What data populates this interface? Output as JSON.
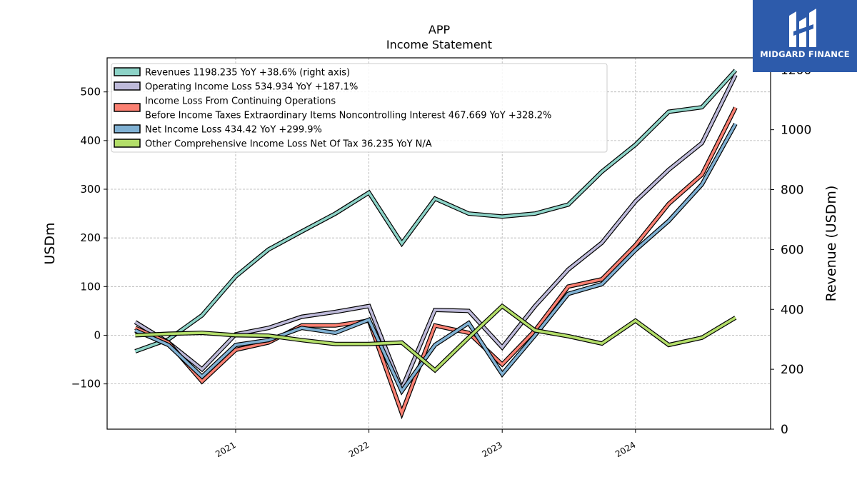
{
  "header": {
    "ticker": "APP",
    "subtitle": "Income Statement"
  },
  "logo": {
    "text": "MIDGARD FINANCE"
  },
  "chart_data": {
    "type": "line",
    "x": [
      "2020-04-01",
      "2020-07-01",
      "2020-10-01",
      "2021-01-01",
      "2021-04-01",
      "2021-07-01",
      "2021-10-01",
      "2022-01-01",
      "2022-04-01",
      "2022-07-01",
      "2022-10-01",
      "2023-01-01",
      "2023-04-01",
      "2023-07-01",
      "2023-10-01",
      "2024-01-01",
      "2024-04-01",
      "2024-07-01",
      "2024-10-01"
    ],
    "x_ticks": [
      "2021",
      "2022",
      "2023",
      "2024"
    ],
    "y_left": {
      "label": "USDm",
      "ticks": [
        -100,
        0,
        100,
        200,
        300,
        400,
        500
      ],
      "lim": [
        -193,
        570
      ]
    },
    "y_right": {
      "label": "Revenue (USDm)",
      "ticks": [
        0,
        200,
        400,
        600,
        800,
        1000,
        1200
      ],
      "lim": [
        0,
        1240
      ]
    },
    "grid": true,
    "legend_position": "top-left",
    "series": [
      {
        "name": "Revenues  1198.235 YoY +38.6% (right axis)",
        "axis": "right",
        "color": "#8dd3c7",
        "values": [
          260,
          300,
          380,
          510,
          600,
          660,
          720,
          790,
          620,
          770,
          720,
          710,
          720,
          750,
          860,
          950,
          1060,
          1075,
          1198.235
        ]
      },
      {
        "name": "Operating Income Loss  534.934 YoY +187.1%",
        "axis": "left",
        "color": "#bebada",
        "values": [
          27,
          -15,
          -70,
          2,
          15,
          38,
          48,
          60,
          -110,
          52,
          50,
          -25,
          60,
          135,
          190,
          275,
          340,
          395,
          534.934
        ]
      },
      {
        "name": "Income Loss From Continuing Operations\nBefore Income Taxes Extraordinary Items Noncontrolling Interest  467.669 YoY +328.2%",
        "axis": "left",
        "color": "#fb8072",
        "values": [
          15,
          -15,
          -95,
          -30,
          -15,
          20,
          20,
          30,
          -160,
          20,
          5,
          -60,
          10,
          100,
          115,
          185,
          270,
          330,
          467.669
        ]
      },
      {
        "name": "Net Income Loss  434.42 YoY +299.9%",
        "axis": "left",
        "color": "#80b1d3",
        "values": [
          10,
          -20,
          -85,
          -20,
          -10,
          15,
          5,
          32,
          -115,
          -20,
          25,
          -80,
          0,
          85,
          105,
          175,
          235,
          310,
          434.42
        ]
      },
      {
        "name": "Other Comprehensive Income Loss Net Of Tax  36.235 YoY N/A",
        "axis": "left",
        "color": "#b3de69",
        "values": [
          0,
          3,
          5,
          0,
          -1,
          -10,
          -18,
          -18,
          -15,
          -72,
          -5,
          60,
          10,
          -2,
          -17,
          30,
          -20,
          -5,
          36.235
        ]
      }
    ]
  }
}
